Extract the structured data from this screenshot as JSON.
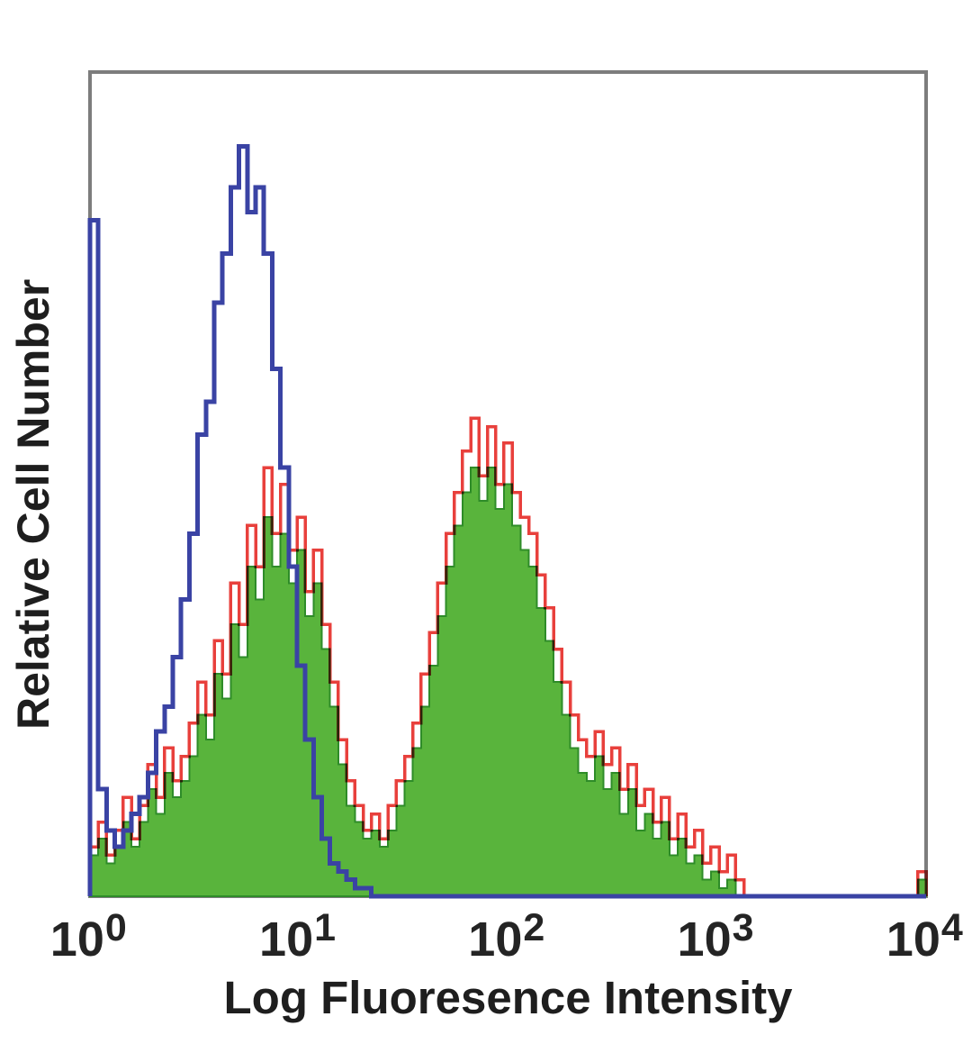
{
  "figure": {
    "background": "#ffffff",
    "frame_color": "#7d7d7d",
    "text_color": "#1e1e1e"
  },
  "chart_data": {
    "type": "area",
    "subtype": "flow-cytometry-step-histogram-overlay",
    "title": "",
    "xlabel": "Log Fluoresence Intensity",
    "ylabel": "Relative Cell Number",
    "x_scale": "log10",
    "xlim_decades": [
      0,
      4
    ],
    "x_ticks": [
      {
        "base": "10",
        "exp": "0"
      },
      {
        "base": "10",
        "exp": "1"
      },
      {
        "base": "10",
        "exp": "2"
      },
      {
        "base": "10",
        "exp": "3"
      },
      {
        "base": "10",
        "exp": "4"
      }
    ],
    "ylim": [
      0,
      100
    ],
    "y_units": "relative cell number (percent of axis max)",
    "bin_width_decades": 0.04,
    "grid": false,
    "legend": "none",
    "series": [
      {
        "name": "blue-open-histogram",
        "style": "open",
        "color": "#3a43a4",
        "peak_decades": [
          0.0,
          0.72
        ],
        "values": [
          82,
          13,
          8,
          6,
          8,
          10,
          12,
          15,
          20,
          23,
          29,
          36,
          44,
          56,
          60,
          72,
          78,
          86,
          91,
          83,
          86,
          78,
          64,
          52,
          40,
          28,
          19,
          12,
          7,
          4,
          3,
          2,
          1,
          1,
          0,
          0,
          0,
          0,
          0,
          0,
          0,
          0,
          0,
          0,
          0,
          0,
          0,
          0,
          0,
          0,
          0,
          0,
          0,
          0,
          0,
          0,
          0,
          0,
          0,
          0,
          0,
          0,
          0,
          0,
          0,
          0,
          0,
          0,
          0,
          0,
          0,
          0,
          0,
          0,
          0,
          0,
          0,
          0,
          0,
          0,
          0,
          0,
          0,
          0,
          0,
          0,
          0,
          0,
          0,
          0,
          0,
          0,
          0,
          0,
          0,
          0,
          0,
          0,
          0,
          0,
          0
        ]
      },
      {
        "name": "red-open-histogram",
        "style": "open",
        "color": "#e8403c",
        "peak_decades": [
          0.84,
          1.92
        ],
        "values": [
          6,
          9,
          5,
          8,
          12,
          7,
          11,
          16,
          12,
          18,
          14,
          17,
          21,
          26,
          22,
          31,
          27,
          38,
          33,
          45,
          40,
          52,
          44,
          50,
          42,
          46,
          37,
          42,
          33,
          26,
          19,
          14,
          11,
          8,
          10,
          7,
          11,
          14,
          17,
          21,
          27,
          32,
          38,
          44,
          49,
          54,
          58,
          51,
          57,
          50,
          55,
          49,
          46,
          44,
          39,
          35,
          30,
          26,
          22,
          19,
          17,
          20,
          16,
          18,
          13,
          16,
          11,
          13,
          9,
          12,
          7,
          10,
          6,
          8,
          4,
          6,
          3,
          5,
          2,
          0,
          0,
          0,
          0,
          0,
          0,
          0,
          0,
          0,
          0,
          0,
          0,
          0,
          0,
          0,
          0,
          0,
          0,
          0,
          0,
          0,
          3
        ]
      },
      {
        "name": "green-filled-histogram",
        "style": "filled",
        "color": "#59b43c",
        "edge_color": "#2e8c28",
        "peak_decades": [
          0.84,
          1.92
        ],
        "values": [
          5,
          7,
          4,
          6,
          9,
          6,
          9,
          13,
          10,
          15,
          12,
          14,
          17,
          22,
          19,
          27,
          24,
          33,
          29,
          40,
          36,
          46,
          40,
          44,
          38,
          42,
          34,
          38,
          30,
          23,
          16,
          11,
          9,
          7,
          8,
          6,
          8,
          11,
          14,
          18,
          23,
          28,
          34,
          40,
          45,
          49,
          52,
          48,
          52,
          47,
          50,
          45,
          42,
          40,
          35,
          31,
          26,
          22,
          18,
          15,
          14,
          17,
          13,
          15,
          10,
          13,
          8,
          10,
          7,
          9,
          5,
          7,
          4,
          5,
          2,
          3,
          1,
          2,
          0,
          0,
          0,
          0,
          0,
          0,
          0,
          0,
          0,
          0,
          0,
          0,
          0,
          0,
          0,
          0,
          0,
          0,
          0,
          0,
          0,
          0,
          2
        ]
      }
    ]
  }
}
